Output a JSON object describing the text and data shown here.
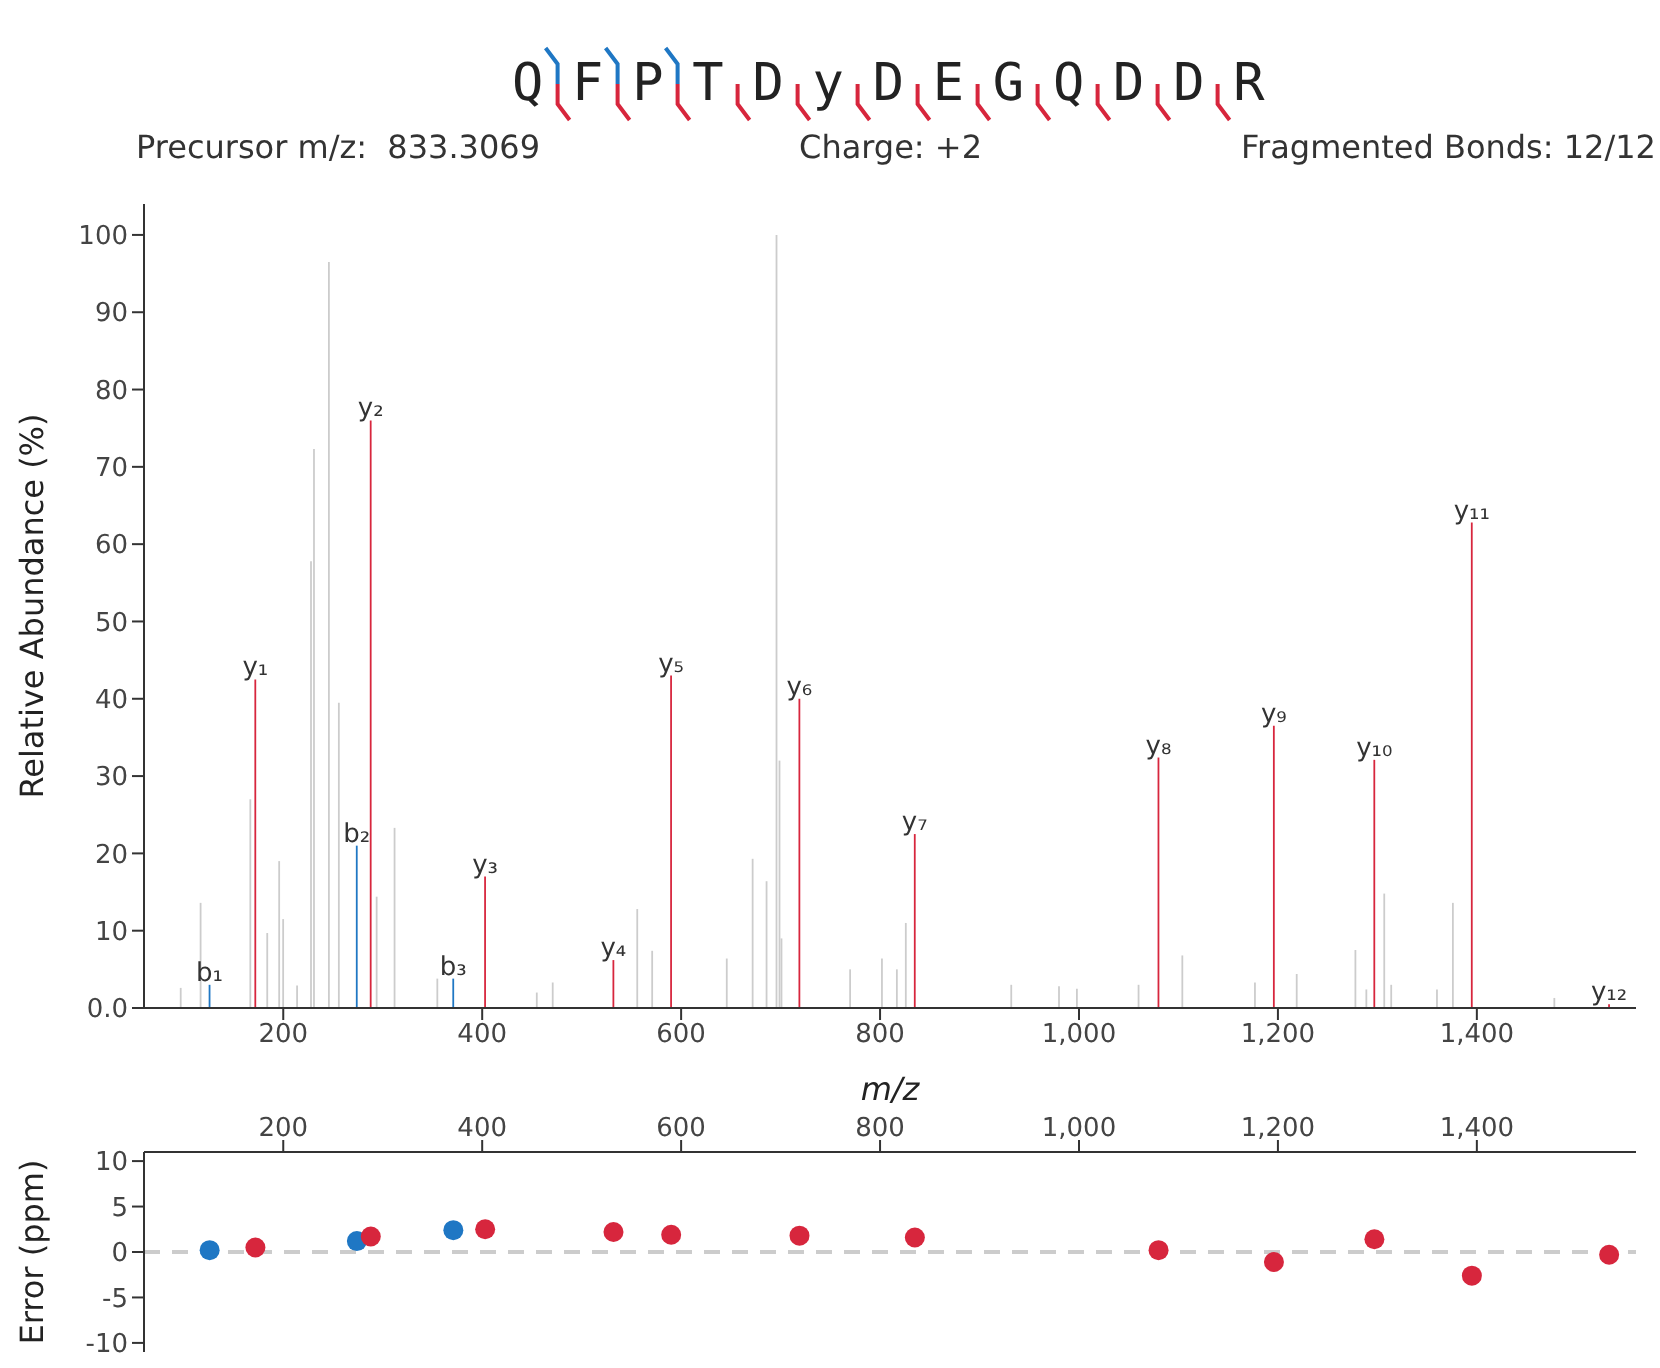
{
  "chart_data": [
    {
      "type": "bar",
      "title": "QFPTDyDEGQDDR",
      "annotations": [
        "Precursor m/z:  833.3069",
        "Charge: +2",
        "Fragmented Bonds: 12/12"
      ],
      "xlabel": "m/z",
      "ylabel": "Relative Abundance (%)",
      "xlim": [
        60,
        1560
      ],
      "xticks": [
        200,
        400,
        600,
        800,
        {
          "value": 1000,
          "label": "1,000"
        },
        {
          "value": 1200,
          "label": "1,200"
        },
        {
          "value": 1400,
          "label": "1,400"
        }
      ],
      "ylim": [
        0,
        104
      ],
      "yticks": [
        {
          "value": 0,
          "label": "0.0"
        },
        10,
        20,
        30,
        40,
        50,
        60,
        70,
        80,
        90,
        100
      ],
      "series": [
        {
          "color": "#cccccc",
          "x": [
            97,
            117,
            167,
            184,
            196,
            200,
            214,
            228,
            231,
            246,
            256,
            294,
            312,
            355,
            455,
            471,
            556,
            571,
            646,
            672,
            686,
            696,
            699,
            701,
            770,
            802,
            817,
            826,
            932,
            980,
            998,
            1060,
            1104,
            1177,
            1219,
            1278,
            1289,
            1307,
            1314,
            1360,
            1376,
            1478
          ],
          "values": [
            2.6,
            13.6,
            27,
            9.7,
            19,
            11.5,
            2.9,
            57.8,
            72.3,
            96.5,
            39.5,
            14.4,
            23.3,
            3.8,
            2,
            3.3,
            12.8,
            7.4,
            6.4,
            19.3,
            16.4,
            100,
            32,
            9,
            5,
            6.4,
            5,
            11,
            3,
            2.8,
            2.5,
            3,
            6.8,
            3.3,
            4.4,
            7.5,
            2.4,
            14.8,
            3,
            2.4,
            13.6,
            1.3
          ]
        },
        {
          "color": "#1f77c4",
          "x": [
            126,
            274,
            371
          ],
          "values": [
            3,
            21,
            3.8
          ],
          "value_labels": [
            "b₁",
            "b₂",
            "b₃"
          ]
        },
        {
          "color": "#d7263d",
          "x": [
            172,
            288,
            403,
            532,
            590,
            719,
            835,
            1080,
            1196,
            1297,
            1395,
            1533
          ],
          "values": [
            42.5,
            76,
            17,
            6.2,
            43,
            40,
            22.5,
            32.4,
            36.5,
            32.1,
            62.8,
            0.5
          ],
          "value_labels": [
            "y₁",
            "y₂",
            "y₃",
            "y₄",
            "y₅",
            "y₆",
            "y₇",
            "y₈",
            "y₉",
            "y₁₀",
            "y₁₁",
            "y₁₂"
          ]
        }
      ]
    },
    {
      "type": "scatter",
      "ylabel": "Error (ppm)",
      "xlim": [
        60,
        1560
      ],
      "xticks": [
        200,
        400,
        600,
        800,
        {
          "value": 1000,
          "label": "1,000"
        },
        {
          "value": 1200,
          "label": "1,200"
        },
        {
          "value": 1400,
          "label": "1,400"
        }
      ],
      "ylim": [
        -11,
        11
      ],
      "yticks": [
        -10,
        -5,
        0,
        5,
        10
      ],
      "marker": "circle",
      "ref_lines": [
        {
          "axis": "y",
          "value": 0,
          "color": "#cccccc",
          "line_style": "dashed"
        }
      ],
      "series": [
        {
          "color": "#1f77c4",
          "x": [
            126,
            274,
            371
          ],
          "values": [
            0.2,
            1.2,
            2.4
          ]
        },
        {
          "color": "#d7263d",
          "x": [
            172,
            288,
            403,
            532,
            590,
            719,
            835,
            1080,
            1196,
            1297,
            1395,
            1533
          ],
          "values": [
            0.5,
            1.7,
            2.5,
            2.2,
            1.9,
            1.8,
            1.6,
            0.2,
            -1.1,
            1.4,
            -2.6,
            -0.3
          ]
        }
      ]
    }
  ]
}
